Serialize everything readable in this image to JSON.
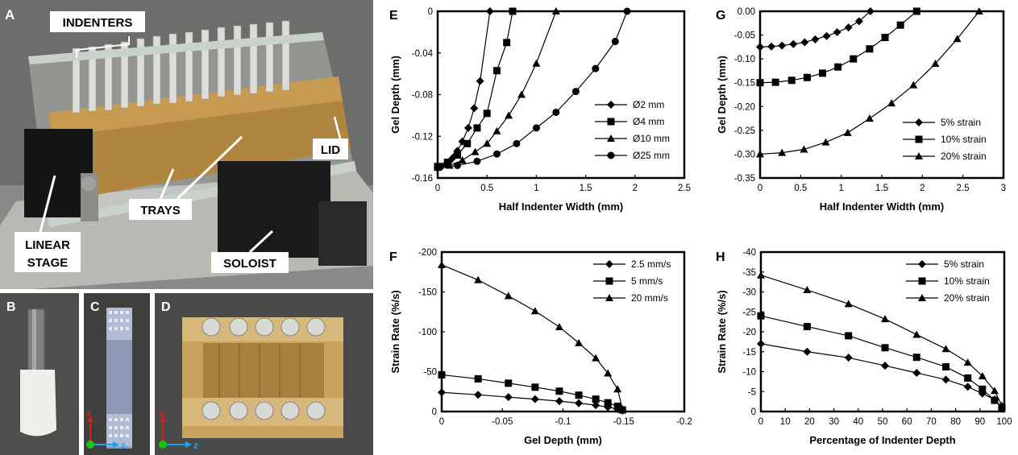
{
  "photos": {
    "A": {
      "panel_letter": "A",
      "labels": {
        "indenters": "INDENTERS",
        "lid": "LID",
        "trays": "TRAYS",
        "linear_stage_1": "LINEAR",
        "linear_stage_2": "STAGE",
        "soloist": "SOLOIST"
      }
    },
    "B": {
      "panel_letter": "B"
    },
    "C": {
      "panel_letter": "C",
      "axis_x": "x",
      "axis_z": "z"
    },
    "D": {
      "panel_letter": "D",
      "axis_x": "x",
      "axis_z": "z"
    }
  },
  "colors": {
    "photo_bg": "#5a5a58",
    "gel_amber": "#b08540",
    "axis_x_red": "#d42020",
    "axis_z_blue": "#1aa3e8",
    "origin_green": "#19c219"
  },
  "chart_data": [
    {
      "panel_letter": "E",
      "type": "line",
      "xlabel": "Half Indenter Width (mm)",
      "ylabel": "Gel Depth (mm)",
      "xlim": [
        0,
        2.5
      ],
      "ylim": [
        -0.16,
        0
      ],
      "xticks": [
        0,
        0.5,
        1,
        1.5,
        2,
        2.5
      ],
      "xtick_labels": [
        "0",
        "0.5",
        "1",
        "1.5",
        "2",
        "2.5"
      ],
      "yticks": [
        0,
        -0.04,
        -0.08,
        -0.12,
        -0.16
      ],
      "ytick_labels": [
        "0",
        "-0.04",
        "-0.08",
        "-0.12",
        "-0.16"
      ],
      "legend_position": "bottom-right",
      "series": [
        {
          "name": "Ø2 mm",
          "marker": "diamond",
          "x": [
            0,
            0.04,
            0.08,
            0.12,
            0.16,
            0.2,
            0.25,
            0.31,
            0.37,
            0.43,
            0.53
          ],
          "y": [
            -0.15,
            -0.149,
            -0.147,
            -0.144,
            -0.14,
            -0.134,
            -0.125,
            -0.112,
            -0.093,
            -0.067,
            0
          ]
        },
        {
          "name": "Ø4 mm",
          "marker": "square",
          "x": [
            0,
            0.1,
            0.2,
            0.3,
            0.4,
            0.5,
            0.6,
            0.7,
            0.76
          ],
          "y": [
            -0.149,
            -0.145,
            -0.138,
            -0.127,
            -0.112,
            -0.098,
            -0.057,
            -0.03,
            0
          ]
        },
        {
          "name": "Ø10 mm",
          "marker": "triangle",
          "x": [
            0,
            0.12,
            0.25,
            0.38,
            0.5,
            0.6,
            0.72,
            0.85,
            1,
            1.2
          ],
          "y": [
            -0.15,
            -0.148,
            -0.143,
            -0.135,
            -0.127,
            -0.115,
            -0.1,
            -0.08,
            -0.05,
            0
          ]
        },
        {
          "name": "Ø25 mm",
          "marker": "circle",
          "x": [
            0,
            0.2,
            0.4,
            0.6,
            0.8,
            1,
            1.2,
            1.4,
            1.6,
            1.8,
            1.92
          ],
          "y": [
            -0.15,
            -0.148,
            -0.144,
            -0.137,
            -0.127,
            -0.112,
            -0.097,
            -0.077,
            -0.055,
            -0.029,
            0
          ]
        }
      ]
    },
    {
      "panel_letter": "G",
      "type": "line",
      "xlabel": "Half Indenter Width (mm)",
      "ylabel": "Gel Depth (mm)",
      "xlim": [
        0,
        3
      ],
      "ylim": [
        -0.35,
        0
      ],
      "xticks": [
        0,
        0.5,
        1,
        1.5,
        2,
        2.5,
        3
      ],
      "xtick_labels": [
        "0",
        "0.5",
        "1",
        "1.5",
        "2",
        "2.5",
        "3"
      ],
      "yticks": [
        0,
        -0.05,
        -0.1,
        -0.15,
        -0.2,
        -0.25,
        -0.3,
        -0.35
      ],
      "ytick_labels": [
        "0.00",
        "-0.05",
        "-0.10",
        "-0.15",
        "-0.20",
        "-0.25",
        "-0.30",
        "-0.35"
      ],
      "legend_position": "bottom-right",
      "series": [
        {
          "name": "5% strain",
          "marker": "diamond",
          "x": [
            0,
            0.14,
            0.27,
            0.41,
            0.55,
            0.68,
            0.82,
            0.95,
            1.09,
            1.22,
            1.36
          ],
          "y": [
            -0.075,
            -0.074,
            -0.072,
            -0.069,
            -0.065,
            -0.059,
            -0.052,
            -0.044,
            -0.034,
            -0.021,
            0
          ]
        },
        {
          "name": "10% strain",
          "marker": "square",
          "x": [
            0,
            0.19,
            0.39,
            0.58,
            0.77,
            0.96,
            1.15,
            1.35,
            1.54,
            1.73,
            1.93
          ],
          "y": [
            -0.15,
            -0.149,
            -0.145,
            -0.139,
            -0.13,
            -0.117,
            -0.1,
            -0.079,
            -0.055,
            -0.029,
            0
          ]
        },
        {
          "name": "20% strain",
          "marker": "triangle",
          "x": [
            0,
            0.27,
            0.54,
            0.81,
            1.08,
            1.35,
            1.62,
            1.89,
            2.16,
            2.43,
            2.7
          ],
          "y": [
            -0.3,
            -0.297,
            -0.29,
            -0.275,
            -0.255,
            -0.225,
            -0.193,
            -0.155,
            -0.11,
            -0.058,
            0
          ]
        }
      ]
    },
    {
      "panel_letter": "F",
      "type": "line",
      "xlabel": "Gel Depth (mm)",
      "ylabel": "Strain Rate (%/s)",
      "xlim": [
        0,
        -0.2
      ],
      "ylim": [
        0,
        -200
      ],
      "xticks": [
        0,
        -0.05,
        -0.1,
        -0.15,
        -0.2
      ],
      "xtick_labels": [
        "0",
        "-0.05",
        "-0.1",
        "-0.15",
        "-0.2"
      ],
      "yticks": [
        0,
        -50,
        -100,
        -150,
        -200
      ],
      "ytick_labels": [
        "0",
        "-50",
        "-100",
        "-150",
        "-200"
      ],
      "legend_position": "top-right",
      "series": [
        {
          "name": "2.5 mm/s",
          "marker": "diamond",
          "x": [
            0,
            -0.03,
            -0.055,
            -0.077,
            -0.097,
            -0.113,
            -0.127,
            -0.137,
            -0.145,
            -0.149
          ],
          "y": [
            -24,
            -21,
            -18,
            -15.5,
            -13,
            -10.5,
            -8,
            -5.5,
            -3,
            -1
          ]
        },
        {
          "name": "5 mm/s",
          "marker": "square",
          "x": [
            0,
            -0.03,
            -0.055,
            -0.077,
            -0.097,
            -0.113,
            -0.127,
            -0.137,
            -0.145,
            -0.149
          ],
          "y": [
            -46,
            -41,
            -35.5,
            -30.5,
            -25.5,
            -20.5,
            -15.5,
            -11,
            -6.5,
            -2
          ]
        },
        {
          "name": "20 mm/s",
          "marker": "triangle",
          "x": [
            0,
            -0.03,
            -0.055,
            -0.077,
            -0.097,
            -0.113,
            -0.127,
            -0.137,
            -0.145,
            -0.149
          ],
          "y": [
            -184,
            -165,
            -145,
            -126,
            -106,
            -86,
            -67,
            -48,
            -28,
            -3
          ]
        }
      ]
    },
    {
      "panel_letter": "H",
      "type": "line",
      "xlabel": "Percentage of Indenter Depth",
      "ylabel": "Strain Rate (%/s)",
      "xlim": [
        0,
        100
      ],
      "ylim": [
        0,
        -40
      ],
      "xticks": [
        0,
        10,
        20,
        30,
        40,
        50,
        60,
        70,
        80,
        90,
        100
      ],
      "xtick_labels": [
        "0",
        "10",
        "20",
        "30",
        "40",
        "50",
        "60",
        "70",
        "80",
        "90",
        "100"
      ],
      "yticks": [
        0,
        -5,
        -10,
        -15,
        -20,
        -25,
        -30,
        -35,
        -40
      ],
      "ytick_labels": [
        "0",
        "-5",
        "-10",
        "-15",
        "-20",
        "-25",
        "-30",
        "-35",
        "-40"
      ],
      "legend_position": "top-right",
      "series": [
        {
          "name": "5% strain",
          "marker": "diamond",
          "x": [
            0,
            19,
            36,
            51,
            64,
            76,
            85,
            91,
            96,
            99
          ],
          "y": [
            -17,
            -15,
            -13.5,
            -11.5,
            -9.7,
            -8,
            -6.2,
            -4.5,
            -3,
            -1
          ]
        },
        {
          "name": "10% strain",
          "marker": "square",
          "x": [
            0,
            19,
            36,
            51,
            64,
            76,
            85,
            91,
            96,
            99
          ],
          "y": [
            -24,
            -21.3,
            -19,
            -16,
            -13.6,
            -11.2,
            -8.4,
            -5.6,
            -2.8,
            -1
          ]
        },
        {
          "name": "20% strain",
          "marker": "triangle",
          "x": [
            0,
            19,
            36,
            51,
            64,
            76,
            85,
            91,
            96,
            99
          ],
          "y": [
            -34.2,
            -30.5,
            -27,
            -23.2,
            -19.3,
            -15.7,
            -12.3,
            -8.9,
            -5.2,
            -1.5
          ]
        }
      ]
    }
  ]
}
